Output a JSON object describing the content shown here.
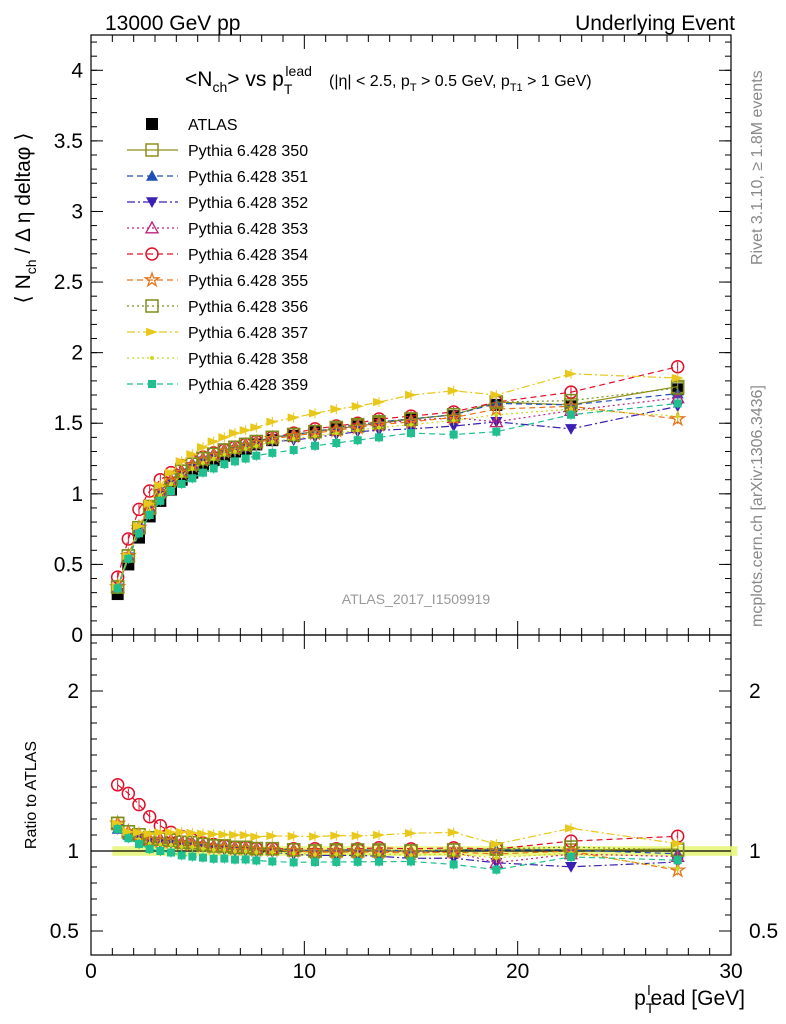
{
  "header": {
    "left": "13000 GeV pp",
    "right": "Underlying Event"
  },
  "side_labels": {
    "rivet": "Rivet 3.1.10, ≥ 1.8M events",
    "mcplots": "mcplots.cern.ch [arXiv:1306.3436]"
  },
  "chart_data": [
    {
      "type": "scatter",
      "title": "<N_ch> vs p_T^lead",
      "title_suffix": "(|η| < 2.5, p_T > 0.5 GeV, p_T1 > 1 GeV)",
      "ylabel": "⟨ N_ch / Δη deltaφ ⟩",
      "xlabel": "p_T^lead [GeV]",
      "xlim": [
        0,
        30
      ],
      "ylim": [
        0,
        4.25
      ],
      "y_ticks": [
        "0",
        "0.5",
        "1",
        "1.5",
        "2",
        "2.5",
        "3",
        "3.5",
        "4"
      ],
      "x_ticks": [
        "0",
        "10",
        "20",
        "30"
      ],
      "watermark": "ATLAS_2017_I1509919",
      "legend_position": "top-left",
      "x": [
        1.25,
        1.75,
        2.25,
        2.75,
        3.25,
        3.75,
        4.25,
        4.75,
        5.25,
        5.75,
        6.25,
        6.75,
        7.25,
        7.75,
        8.5,
        9.5,
        10.5,
        11.5,
        12.5,
        13.5,
        15,
        17,
        19,
        22.5,
        27.5
      ],
      "series": [
        {
          "name": "ATLAS",
          "color": "#000000",
          "marker": "filled-square",
          "dash": "none",
          "values": [
            0.29,
            0.5,
            0.69,
            0.84,
            0.95,
            1.03,
            1.1,
            1.15,
            1.2,
            1.24,
            1.27,
            1.3,
            1.32,
            1.35,
            1.38,
            1.41,
            1.44,
            1.46,
            1.48,
            1.5,
            1.53,
            1.55,
            1.63,
            1.62,
            1.74
          ]
        },
        {
          "name": "Pythia 6.428 350",
          "color": "#8f8f1a",
          "marker": "open-square",
          "dash": "solid",
          "values": [
            0.34,
            0.56,
            0.76,
            0.9,
            1.02,
            1.1,
            1.16,
            1.21,
            1.25,
            1.28,
            1.31,
            1.33,
            1.35,
            1.37,
            1.4,
            1.42,
            1.44,
            1.46,
            1.48,
            1.5,
            1.53,
            1.56,
            1.65,
            1.63,
            1.76
          ]
        },
        {
          "name": "Pythia 6.428 351",
          "color": "#1f4fb4",
          "marker": "filled-triangle-up",
          "dash": "dashed",
          "values": [
            0.33,
            0.55,
            0.75,
            0.9,
            1.02,
            1.1,
            1.16,
            1.21,
            1.25,
            1.28,
            1.31,
            1.33,
            1.35,
            1.37,
            1.4,
            1.42,
            1.44,
            1.47,
            1.49,
            1.51,
            1.53,
            1.56,
            1.64,
            1.63,
            1.71
          ]
        },
        {
          "name": "Pythia 6.428 352",
          "color": "#3a1fb4",
          "marker": "filled-triangle-down",
          "dash": "dashdot",
          "values": [
            0.33,
            0.55,
            0.75,
            0.89,
            1.0,
            1.08,
            1.14,
            1.19,
            1.23,
            1.26,
            1.28,
            1.3,
            1.32,
            1.34,
            1.37,
            1.38,
            1.4,
            1.42,
            1.44,
            1.45,
            1.46,
            1.48,
            1.51,
            1.46,
            1.62
          ]
        },
        {
          "name": "Pythia 6.428 353",
          "color": "#c01f7a",
          "marker": "open-triangle-up",
          "dash": "dotted",
          "values": [
            0.34,
            0.56,
            0.76,
            0.9,
            1.02,
            1.1,
            1.16,
            1.21,
            1.25,
            1.28,
            1.31,
            1.33,
            1.35,
            1.37,
            1.4,
            1.42,
            1.44,
            1.46,
            1.48,
            1.5,
            1.52,
            1.54,
            1.51,
            1.59,
            1.68
          ]
        },
        {
          "name": "Pythia 6.428 354",
          "color": "#e0102a",
          "marker": "open-circle",
          "dash": "dashed",
          "values": [
            0.41,
            0.68,
            0.89,
            1.02,
            1.1,
            1.15,
            1.2,
            1.23,
            1.26,
            1.29,
            1.31,
            1.33,
            1.35,
            1.37,
            1.4,
            1.43,
            1.46,
            1.48,
            1.5,
            1.53,
            1.55,
            1.58,
            1.65,
            1.72,
            1.9
          ]
        },
        {
          "name": "Pythia 6.428 355",
          "color": "#e8741a",
          "marker": "open-star",
          "dash": "dashed",
          "values": [
            0.34,
            0.56,
            0.76,
            0.9,
            1.01,
            1.09,
            1.15,
            1.2,
            1.24,
            1.27,
            1.3,
            1.32,
            1.34,
            1.36,
            1.39,
            1.41,
            1.43,
            1.45,
            1.47,
            1.49,
            1.51,
            1.54,
            1.6,
            1.62,
            1.53
          ]
        },
        {
          "name": "Pythia 6.428 356",
          "color": "#7a8f1a",
          "marker": "open-square",
          "dash": "dotted",
          "values": [
            0.34,
            0.56,
            0.76,
            0.91,
            1.02,
            1.1,
            1.16,
            1.21,
            1.25,
            1.28,
            1.31,
            1.33,
            1.35,
            1.37,
            1.4,
            1.42,
            1.44,
            1.47,
            1.49,
            1.51,
            1.53,
            1.56,
            1.65,
            1.66,
            1.75
          ]
        },
        {
          "name": "Pythia 6.428 357",
          "color": "#e8c81a",
          "marker": "filled-triangle-right",
          "dash": "dashdot",
          "values": [
            0.34,
            0.56,
            0.77,
            0.93,
            1.06,
            1.15,
            1.23,
            1.28,
            1.33,
            1.37,
            1.4,
            1.43,
            1.45,
            1.47,
            1.51,
            1.54,
            1.57,
            1.6,
            1.62,
            1.65,
            1.7,
            1.73,
            1.7,
            1.85,
            1.82
          ]
        },
        {
          "name": "Pythia 6.428 358",
          "color": "#c8dc1a",
          "marker": "small-dot",
          "dash": "dotted",
          "values": [
            0.33,
            0.55,
            0.74,
            0.88,
            0.99,
            1.07,
            1.13,
            1.18,
            1.22,
            1.25,
            1.28,
            1.3,
            1.32,
            1.34,
            1.37,
            1.39,
            1.41,
            1.43,
            1.45,
            1.47,
            1.49,
            1.52,
            1.56,
            1.6,
            1.55
          ]
        },
        {
          "name": "Pythia 6.428 359",
          "color": "#1fbf8f",
          "marker": "filled-square-small",
          "dash": "dashed",
          "values": [
            0.33,
            0.54,
            0.72,
            0.85,
            0.95,
            1.02,
            1.07,
            1.11,
            1.15,
            1.18,
            1.21,
            1.23,
            1.25,
            1.27,
            1.29,
            1.31,
            1.34,
            1.36,
            1.38,
            1.4,
            1.43,
            1.42,
            1.44,
            1.56,
            1.64
          ]
        }
      ]
    },
    {
      "type": "scatter",
      "ylabel": "Ratio to ATLAS",
      "ylim": [
        0.35,
        2.35
      ],
      "y_ticks": [
        "0.5",
        "1",
        "2"
      ],
      "reference_band_color": "#e8f57a",
      "note": "ratio of each series to ATLAS, same x and colors as above"
    }
  ]
}
